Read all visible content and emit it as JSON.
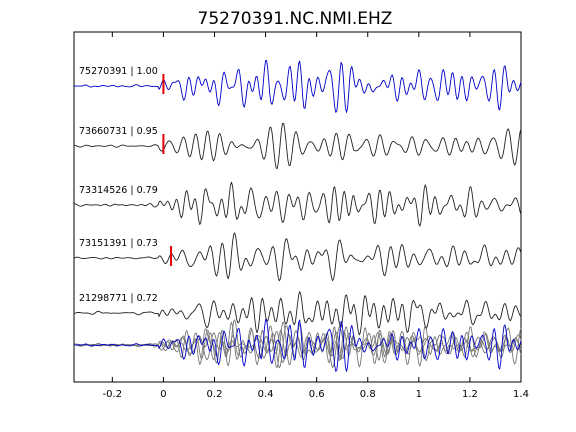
{
  "chart_data": {
    "type": "line",
    "title": "75270391.NC.NMI.EHZ",
    "xlabel": "",
    "ylabel": "",
    "xlim": [
      -0.35,
      1.4
    ],
    "xticks": [
      -0.2,
      0,
      0.2,
      0.4,
      0.6,
      0.8,
      1,
      1.2,
      1.4
    ],
    "xtick_labels": [
      "-0.2",
      "0",
      "0.2",
      "0.4",
      "0.6",
      "0.8",
      "1",
      "1.2",
      "1.4"
    ],
    "grid": false,
    "colors": {
      "primary": "#0000cc",
      "secondary": "#222222",
      "overlay_secondary": "#777777",
      "pick": "#e00000"
    },
    "traces": [
      {
        "id": "75270391",
        "label": "75270391 | 1.00",
        "cc": 1.0,
        "pick_time": 0.0,
        "color": "#0000cc",
        "seed": 1
      },
      {
        "id": "73660731",
        "label": "73660731 | 0.95",
        "cc": 0.95,
        "pick_time": 0.0,
        "color": "#222222",
        "seed": 2
      },
      {
        "id": "73314526",
        "label": "73314526 | 0.79",
        "cc": 0.79,
        "pick_time": null,
        "color": "#222222",
        "seed": 3
      },
      {
        "id": "73151391",
        "label": "73151391 | 0.73",
        "cc": 0.73,
        "pick_time": 0.03,
        "color": "#222222",
        "seed": 4
      },
      {
        "id": "21298771",
        "label": "21298771 | 0.72",
        "cc": 0.72,
        "pick_time": null,
        "color": "#222222",
        "seed": 5
      }
    ],
    "stack": {
      "overlay_of": [
        "75270391",
        "73660731",
        "73314526",
        "73151391",
        "21298771"
      ]
    }
  }
}
